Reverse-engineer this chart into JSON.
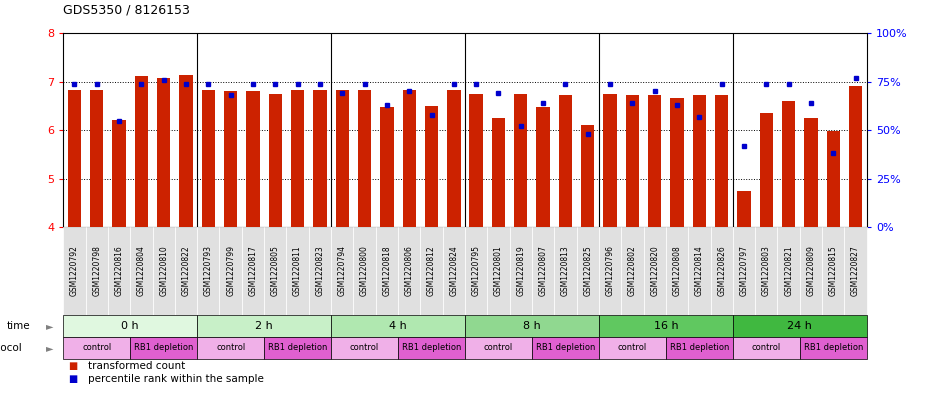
{
  "title": "GDS5350 / 8126153",
  "samples": [
    "GSM1220792",
    "GSM1220798",
    "GSM1220816",
    "GSM1220804",
    "GSM1220810",
    "GSM1220822",
    "GSM1220793",
    "GSM1220799",
    "GSM1220817",
    "GSM1220805",
    "GSM1220811",
    "GSM1220823",
    "GSM1220794",
    "GSM1220800",
    "GSM1220818",
    "GSM1220806",
    "GSM1220812",
    "GSM1220824",
    "GSM1220795",
    "GSM1220801",
    "GSM1220819",
    "GSM1220807",
    "GSM1220813",
    "GSM1220825",
    "GSM1220796",
    "GSM1220802",
    "GSM1220820",
    "GSM1220808",
    "GSM1220814",
    "GSM1220826",
    "GSM1220797",
    "GSM1220803",
    "GSM1220821",
    "GSM1220809",
    "GSM1220815",
    "GSM1220827"
  ],
  "red_values": [
    6.84,
    6.83,
    6.22,
    7.13,
    7.08,
    7.15,
    6.84,
    6.82,
    6.82,
    6.75,
    6.84,
    6.84,
    6.84,
    6.84,
    6.47,
    6.84,
    6.5,
    6.84,
    6.75,
    6.25,
    6.75,
    6.47,
    6.73,
    6.1,
    6.75,
    6.73,
    6.73,
    6.66,
    6.73,
    6.73,
    4.75,
    6.35,
    6.6,
    6.25,
    5.98,
    6.92
  ],
  "blue_values_pct": [
    74,
    74,
    55,
    74,
    76,
    74,
    74,
    68,
    74,
    74,
    74,
    74,
    69,
    74,
    63,
    70,
    58,
    74,
    74,
    69,
    52,
    64,
    74,
    48,
    74,
    64,
    70,
    63,
    57,
    74,
    42,
    74,
    74,
    64,
    38,
    77
  ],
  "time_groups": [
    {
      "label": "0 h",
      "start": 0,
      "end": 6,
      "color": "#e0f8e0"
    },
    {
      "label": "2 h",
      "start": 6,
      "end": 12,
      "color": "#c8f0c8"
    },
    {
      "label": "4 h",
      "start": 12,
      "end": 18,
      "color": "#b0e8b0"
    },
    {
      "label": "8 h",
      "start": 18,
      "end": 24,
      "color": "#90d890"
    },
    {
      "label": "16 h",
      "start": 24,
      "end": 30,
      "color": "#60c860"
    },
    {
      "label": "24 h",
      "start": 30,
      "end": 36,
      "color": "#40b840"
    }
  ],
  "protocol_groups": [
    {
      "label": "control",
      "start": 0,
      "end": 3,
      "color": "#f0b0e8"
    },
    {
      "label": "RB1 depletion",
      "start": 3,
      "end": 6,
      "color": "#e060d0"
    },
    {
      "label": "control",
      "start": 6,
      "end": 9,
      "color": "#f0b0e8"
    },
    {
      "label": "RB1 depletion",
      "start": 9,
      "end": 12,
      "color": "#e060d0"
    },
    {
      "label": "control",
      "start": 12,
      "end": 15,
      "color": "#f0b0e8"
    },
    {
      "label": "RB1 depletion",
      "start": 15,
      "end": 18,
      "color": "#e060d0"
    },
    {
      "label": "control",
      "start": 18,
      "end": 21,
      "color": "#f0b0e8"
    },
    {
      "label": "RB1 depletion",
      "start": 21,
      "end": 24,
      "color": "#e060d0"
    },
    {
      "label": "control",
      "start": 24,
      "end": 27,
      "color": "#f0b0e8"
    },
    {
      "label": "RB1 depletion",
      "start": 27,
      "end": 30,
      "color": "#e060d0"
    },
    {
      "label": "control",
      "start": 30,
      "end": 33,
      "color": "#f0b0e8"
    },
    {
      "label": "RB1 depletion",
      "start": 33,
      "end": 36,
      "color": "#e060d0"
    }
  ],
  "ylim": [
    4,
    8
  ],
  "yticks": [
    4,
    5,
    6,
    7,
    8
  ],
  "y2ticks": [
    0,
    25,
    50,
    75,
    100
  ],
  "bar_color": "#cc2200",
  "dot_color": "#0000cc",
  "bg_color": "#ffffff",
  "xtick_bg": "#e0e0e0"
}
